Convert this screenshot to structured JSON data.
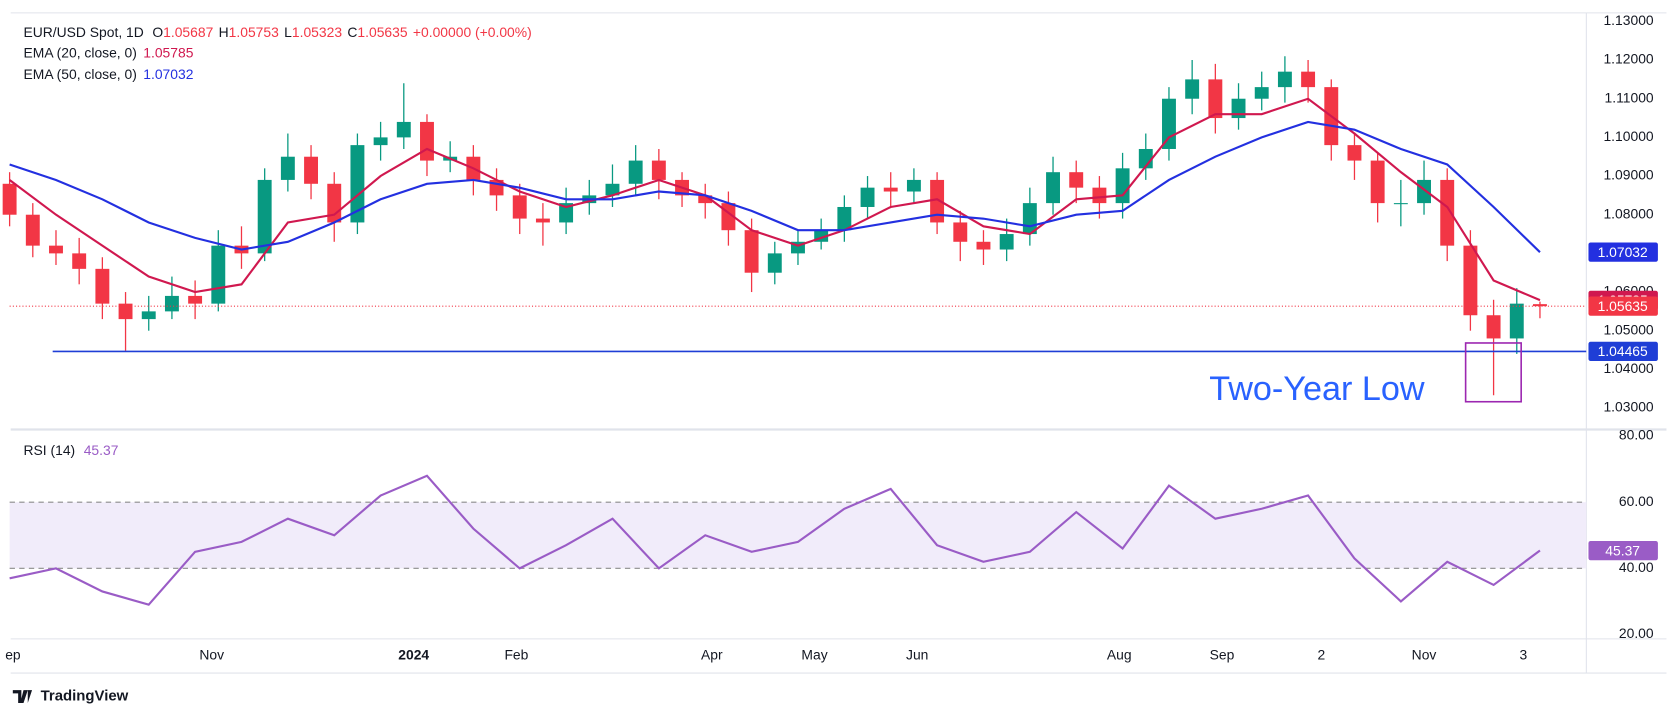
{
  "chart_data": [
    {
      "type": "candlestick",
      "symbol": "EUR/USD Spot, 1D",
      "ohlc_labels": [
        "O",
        "H",
        "L",
        "C"
      ],
      "change": "+0.00000 (+0.00%)",
      "up_color": "#089981",
      "down_color": "#f23645",
      "x": [
        0,
        7,
        14,
        21,
        28,
        35,
        42,
        49,
        56,
        63,
        70,
        77,
        84,
        91,
        98,
        105,
        112,
        119,
        126,
        133,
        140,
        147,
        154,
        161,
        168,
        175,
        182,
        189,
        196,
        203,
        210,
        217,
        224,
        231,
        238,
        245,
        252,
        259,
        266,
        273,
        280,
        287,
        294,
        301,
        308,
        315,
        322,
        329,
        336,
        343,
        350,
        357,
        364,
        371,
        378,
        385,
        392,
        399,
        406,
        413,
        420,
        427,
        434,
        441,
        448,
        455,
        462
      ],
      "open": [
        1.088,
        1.08,
        1.072,
        1.07,
        1.066,
        1.057,
        1.053,
        1.055,
        1.059,
        1.057,
        1.072,
        1.07,
        1.089,
        1.095,
        1.088,
        1.078,
        1.098,
        1.1,
        1.104,
        1.094,
        1.095,
        1.089,
        1.085,
        1.079,
        1.078,
        1.083,
        1.085,
        1.088,
        1.094,
        1.089,
        1.085,
        1.083,
        1.076,
        1.065,
        1.07,
        1.073,
        1.076,
        1.082,
        1.087,
        1.086,
        1.089,
        1.078,
        1.073,
        1.071,
        1.075,
        1.083,
        1.091,
        1.087,
        1.083,
        1.092,
        1.097,
        1.11,
        1.115,
        1.105,
        1.11,
        1.113,
        1.117,
        1.113,
        1.098,
        1.094,
        1.083,
        1.083,
        1.089,
        1.072,
        1.054,
        1.048,
        1.05687
      ],
      "high": [
        1.091,
        1.083,
        1.076,
        1.074,
        1.069,
        1.06,
        1.059,
        1.064,
        1.063,
        1.076,
        1.077,
        1.092,
        1.101,
        1.098,
        1.091,
        1.101,
        1.104,
        1.114,
        1.106,
        1.099,
        1.098,
        1.092,
        1.088,
        1.083,
        1.087,
        1.089,
        1.093,
        1.098,
        1.097,
        1.091,
        1.088,
        1.086,
        1.079,
        1.073,
        1.076,
        1.079,
        1.085,
        1.09,
        1.091,
        1.092,
        1.091,
        1.081,
        1.076,
        1.079,
        1.087,
        1.095,
        1.094,
        1.09,
        1.096,
        1.101,
        1.113,
        1.12,
        1.119,
        1.114,
        1.117,
        1.121,
        1.12,
        1.115,
        1.101,
        1.096,
        1.089,
        1.094,
        1.092,
        1.076,
        1.058,
        1.061,
        1.05753
      ],
      "low": [
        1.077,
        1.069,
        1.067,
        1.062,
        1.053,
        1.0448,
        1.05,
        1.053,
        1.053,
        1.055,
        1.066,
        1.068,
        1.086,
        1.084,
        1.073,
        1.075,
        1.094,
        1.097,
        1.09,
        1.091,
        1.085,
        1.081,
        1.075,
        1.072,
        1.075,
        1.08,
        1.082,
        1.085,
        1.084,
        1.082,
        1.079,
        1.072,
        1.06,
        1.062,
        1.067,
        1.071,
        1.073,
        1.079,
        1.082,
        1.083,
        1.075,
        1.068,
        1.067,
        1.068,
        1.072,
        1.08,
        1.083,
        1.079,
        1.079,
        1.089,
        1.094,
        1.106,
        1.101,
        1.102,
        1.107,
        1.109,
        1.109,
        1.094,
        1.089,
        1.078,
        1.077,
        1.08,
        1.068,
        1.05,
        1.0333,
        1.044,
        1.05323
      ],
      "close": [
        1.08,
        1.072,
        1.07,
        1.066,
        1.057,
        1.053,
        1.055,
        1.059,
        1.057,
        1.072,
        1.07,
        1.089,
        1.095,
        1.088,
        1.078,
        1.098,
        1.1,
        1.104,
        1.094,
        1.095,
        1.089,
        1.085,
        1.079,
        1.078,
        1.083,
        1.085,
        1.088,
        1.094,
        1.089,
        1.085,
        1.083,
        1.076,
        1.065,
        1.07,
        1.073,
        1.076,
        1.082,
        1.087,
        1.086,
        1.089,
        1.078,
        1.073,
        1.071,
        1.075,
        1.083,
        1.091,
        1.087,
        1.083,
        1.092,
        1.097,
        1.11,
        1.115,
        1.105,
        1.11,
        1.113,
        1.117,
        1.113,
        1.098,
        1.094,
        1.083,
        1.083,
        1.089,
        1.072,
        1.054,
        1.048,
        1.057,
        1.05635
      ],
      "series": [
        {
          "name": "EMA (20, close, 0)",
          "color": "#d0184f",
          "last_value": 1.05785,
          "x": [
            0,
            14,
            28,
            42,
            56,
            70,
            84,
            98,
            112,
            126,
            140,
            154,
            168,
            182,
            196,
            210,
            224,
            238,
            252,
            266,
            280,
            294,
            308,
            322,
            336,
            350,
            364,
            378,
            392,
            406,
            420,
            434,
            448,
            462
          ],
          "values": [
            1.089,
            1.08,
            1.072,
            1.064,
            1.06,
            1.062,
            1.078,
            1.08,
            1.09,
            1.097,
            1.092,
            1.086,
            1.082,
            1.085,
            1.089,
            1.085,
            1.076,
            1.072,
            1.076,
            1.082,
            1.084,
            1.077,
            1.075,
            1.084,
            1.085,
            1.1,
            1.106,
            1.106,
            1.11,
            1.101,
            1.091,
            1.082,
            1.063,
            1.0579
          ]
        },
        {
          "name": "EMA (50, close, 0)",
          "color": "#2330e0",
          "last_value": 1.07032,
          "x": [
            0,
            14,
            28,
            42,
            56,
            70,
            84,
            98,
            112,
            126,
            140,
            154,
            168,
            182,
            196,
            210,
            224,
            238,
            252,
            266,
            280,
            294,
            308,
            322,
            336,
            350,
            364,
            378,
            392,
            406,
            420,
            434,
            448,
            462
          ],
          "values": [
            1.093,
            1.089,
            1.084,
            1.078,
            1.074,
            1.071,
            1.073,
            1.078,
            1.084,
            1.088,
            1.089,
            1.087,
            1.084,
            1.084,
            1.086,
            1.085,
            1.081,
            1.076,
            1.076,
            1.078,
            1.08,
            1.079,
            1.077,
            1.08,
            1.081,
            1.089,
            1.095,
            1.1,
            1.104,
            1.102,
            1.097,
            1.093,
            1.082,
            1.0703
          ]
        }
      ],
      "support": {
        "value": 1.04465,
        "from_x": 13,
        "color": "#1f3ed6"
      },
      "annotation": "Two-Year Low",
      "last_price_line": true,
      "xlim": [
        0,
        476
      ],
      "ylim": [
        1.025,
        1.1322
      ],
      "yticks": [
        {
          "value": 1.03,
          "label": "1.03000"
        },
        {
          "value": 1.04,
          "label": "1.04000"
        },
        {
          "value": 1.05,
          "label": "1.05000"
        },
        {
          "value": 1.06,
          "label": "1.06000"
        },
        {
          "value": 1.07,
          "label": "1.07000"
        },
        {
          "value": 1.08,
          "label": "1.08000"
        },
        {
          "value": 1.09,
          "label": "1.09000"
        },
        {
          "value": 1.1,
          "label": "1.10000"
        },
        {
          "value": 1.11,
          "label": "1.11000"
        },
        {
          "value": 1.12,
          "label": "1.12000"
        },
        {
          "value": 1.13,
          "label": "1.13000"
        }
      ]
    },
    {
      "type": "line",
      "band": [
        40,
        60
      ],
      "band_color": "#f1ecfa",
      "series": [
        {
          "name": "RSI (14)",
          "color": "#9a5cc6",
          "x": [
            0,
            14,
            28,
            42,
            56,
            70,
            84,
            98,
            112,
            126,
            140,
            154,
            168,
            182,
            196,
            210,
            224,
            238,
            252,
            266,
            280,
            294,
            308,
            322,
            336,
            350,
            364,
            378,
            392,
            406,
            420,
            434,
            448,
            462
          ],
          "values": [
            37,
            40,
            33,
            29,
            45,
            48,
            55,
            50,
            62,
            68,
            52,
            40,
            47,
            55,
            40,
            50,
            45,
            48,
            58,
            64,
            47,
            42,
            45,
            57,
            46,
            65,
            55,
            58,
            62,
            43,
            30,
            42,
            35,
            45.37
          ]
        }
      ],
      "xlim": [
        0,
        476
      ],
      "ylim": [
        19,
        81
      ],
      "yticks": [
        {
          "value": 20,
          "label": "20.00"
        },
        {
          "value": 40,
          "label": "40.00"
        },
        {
          "value": 60,
          "label": "60.00"
        },
        {
          "value": 80,
          "label": "80.00"
        }
      ],
      "xticks": [
        {
          "value": 1,
          "label": "ep"
        },
        {
          "value": 61,
          "label": "Nov"
        },
        {
          "value": 122,
          "label": "2024",
          "bold": true
        },
        {
          "value": 153,
          "label": "Feb"
        },
        {
          "value": 212,
          "label": "Apr"
        },
        {
          "value": 243,
          "label": "May"
        },
        {
          "value": 274,
          "label": "Jun"
        },
        {
          "value": 335,
          "label": "Aug"
        },
        {
          "value": 366,
          "label": "Sep"
        },
        {
          "value": 396,
          "label": "2"
        },
        {
          "value": 427,
          "label": "Nov"
        },
        {
          "value": 457,
          "label": "3"
        }
      ]
    }
  ],
  "footer": {
    "brand": "TradingView"
  }
}
